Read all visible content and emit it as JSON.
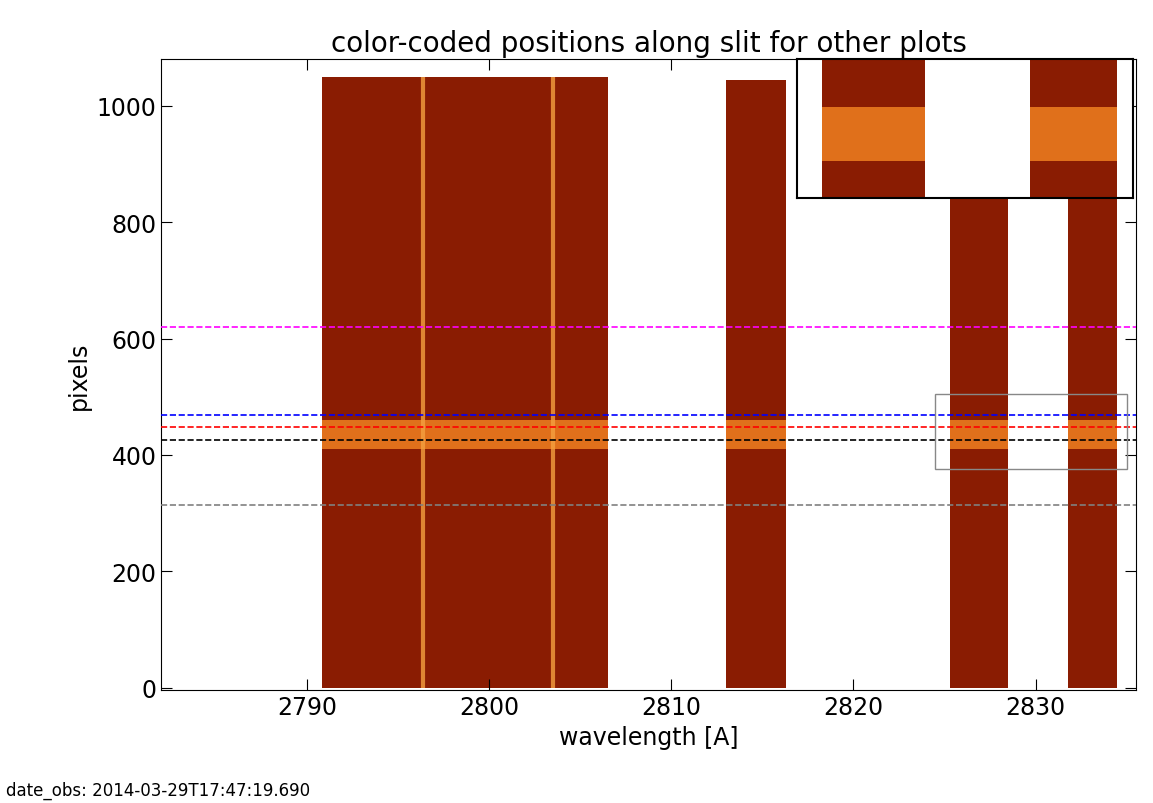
{
  "chart_data": {
    "type": "spectrum_image",
    "title": "color-coded positions along slit for other plots",
    "x_label": "wavelength [A]",
    "y_label": "pixels",
    "footnote": "date_obs: 2014-03-29T17:47:19.690",
    "xlim": [
      2782,
      2835.5
    ],
    "ylim": [
      -5,
      1080
    ],
    "xticks": [
      2790,
      2800,
      2810,
      2820,
      2830
    ],
    "yticks": [
      0,
      200,
      400,
      600,
      800,
      1000
    ],
    "windows": [
      {
        "wavelength": [
          2790.8,
          2806.5
        ],
        "pixels": [
          0,
          1050
        ]
      },
      {
        "wavelength": [
          2813.0,
          2816.3
        ],
        "pixels": [
          0,
          1045
        ]
      },
      {
        "wavelength": [
          2825.3,
          2828.5
        ],
        "pixels": [
          0,
          1045
        ]
      },
      {
        "wavelength": [
          2831.8,
          2834.5
        ],
        "pixels": [
          0,
          1045
        ]
      }
    ],
    "emission_lines": [
      2796.35,
      2803.5
    ],
    "bright_rows": [
      410,
      460
    ],
    "positions": [
      {
        "pixels": 620,
        "color": "#ff00ff"
      },
      {
        "pixels": 468,
        "color": "#0000ff"
      },
      {
        "pixels": 448,
        "color": "#ff0000"
      },
      {
        "pixels": 425,
        "color": "#000000"
      },
      {
        "pixels": 313,
        "color": "#808080"
      }
    ],
    "box": {
      "wavelength": [
        2824.5,
        2835
      ],
      "pixels": [
        375,
        505
      ]
    }
  }
}
